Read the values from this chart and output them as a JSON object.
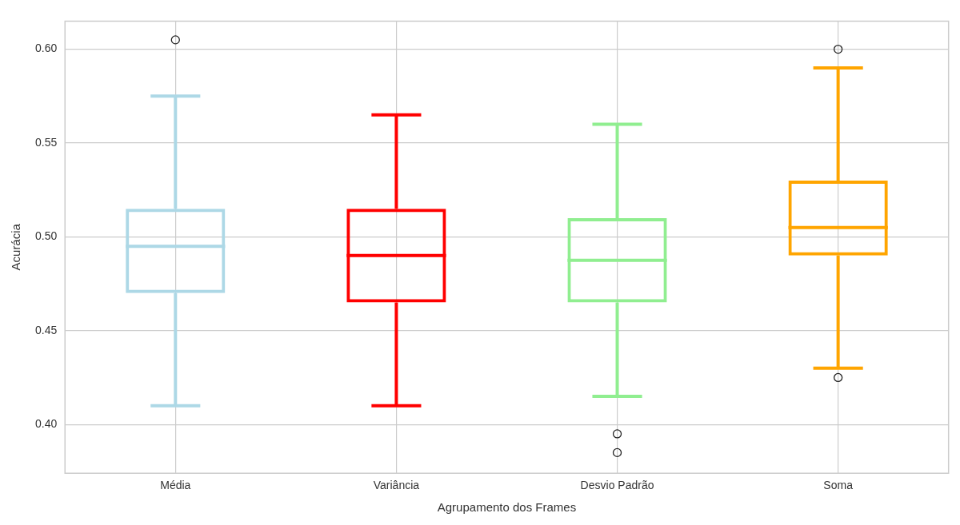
{
  "chart_data": {
    "type": "box",
    "categories": [
      "Média",
      "Variância",
      "Desvio Padrão",
      "Soma"
    ],
    "colors": [
      "#add8e6",
      "#ff0000",
      "#90ee90",
      "#ffa500"
    ],
    "boxes": [
      {
        "low": 0.41,
        "q1": 0.47,
        "median": 0.495,
        "q3": 0.515,
        "high": 0.575,
        "outliers": [
          0.605
        ]
      },
      {
        "low": 0.41,
        "q1": 0.465,
        "median": 0.49,
        "q3": 0.515,
        "high": 0.565
      },
      {
        "low": 0.415,
        "q1": 0.465,
        "median": 0.4875,
        "q3": 0.51,
        "high": 0.56,
        "outliers": [
          0.395,
          0.385
        ]
      },
      {
        "low": 0.43,
        "q1": 0.49,
        "median": 0.505,
        "q3": 0.53,
        "high": 0.59,
        "outliers": [
          0.6,
          0.425
        ]
      }
    ],
    "xlabel": "Agrupamento dos Frames",
    "ylabel": "Acurácia",
    "ylim": [
      0.374,
      0.615
    ],
    "yticks": [
      {
        "value": 0.4,
        "label": "0.40"
      },
      {
        "value": 0.45,
        "label": "0.45"
      },
      {
        "value": 0.5,
        "label": "0.50"
      },
      {
        "value": 0.55,
        "label": "0.55"
      },
      {
        "value": 0.6,
        "label": "0.60"
      }
    ],
    "grid": true
  }
}
